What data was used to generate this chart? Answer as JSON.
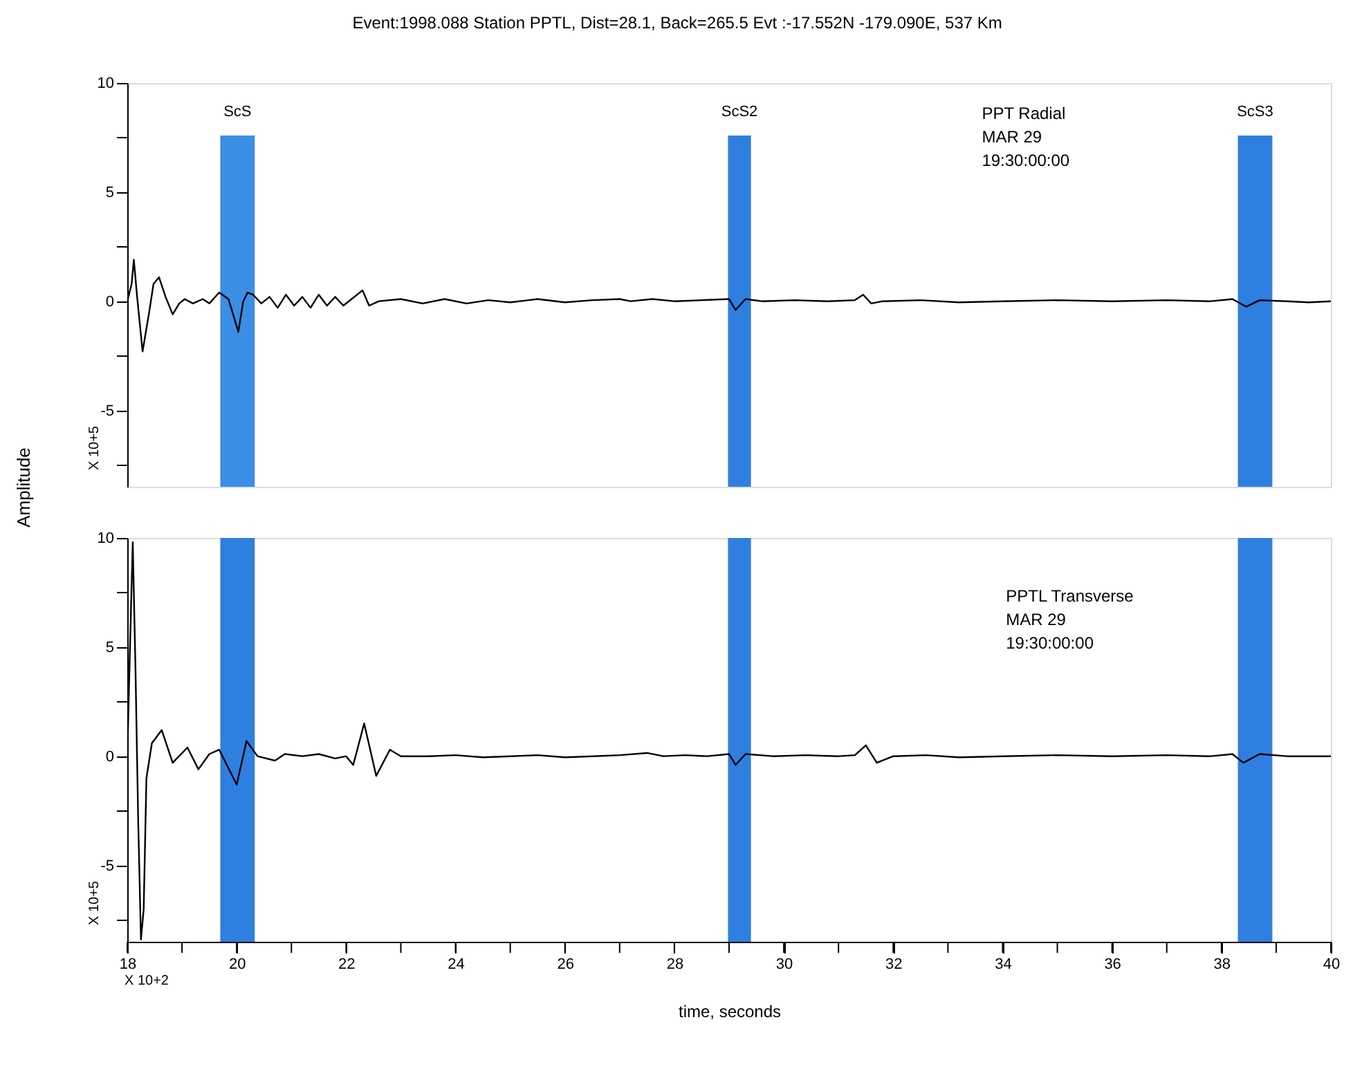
{
  "chart_data": [
    {
      "type": "line",
      "title": "Event:1998.088 Station PPTL, Dist=28.1, Back=265.5 Evt :-17.552N -179.090E, 537 Km",
      "ylabel": "Amplitude",
      "tick_labels": "y",
      "xlim": [
        18,
        40
      ],
      "ylim": [
        -8.5,
        10
      ],
      "yticks": [
        {
          "value": -7.5,
          "label": null
        },
        -5,
        {
          "value": -2.5,
          "label": null
        },
        0,
        {
          "value": 2.5,
          "label": null
        },
        5,
        {
          "value": 7.5,
          "label": null
        },
        10
      ],
      "series": [
        {
          "name": "PPT Radial",
          "color": "#000000",
          "x": [
            18.0,
            18.08,
            18.12,
            18.18,
            18.28,
            18.4,
            18.48,
            18.58,
            18.7,
            18.83,
            18.95,
            19.05,
            19.2,
            19.38,
            19.5,
            19.68,
            19.85,
            20.03,
            20.12,
            20.2,
            20.3,
            20.45,
            20.6,
            20.75,
            20.9,
            21.05,
            21.2,
            21.35,
            21.5,
            21.65,
            21.8,
            21.95,
            22.1,
            22.3,
            22.42,
            22.6,
            23.0,
            23.4,
            23.8,
            24.2,
            24.6,
            25.0,
            25.5,
            26.0,
            26.5,
            27.0,
            27.2,
            27.6,
            28.0,
            28.5,
            29.0,
            29.12,
            29.3,
            29.6,
            30.2,
            30.8,
            31.3,
            31.45,
            31.6,
            31.8,
            32.5,
            33.2,
            34.0,
            35.0,
            36.0,
            37.0,
            37.8,
            38.2,
            38.45,
            38.7,
            39.2,
            39.6,
            40.0
          ],
          "values": [
            0,
            0.8,
            1.9,
            0.2,
            -2.3,
            -0.5,
            0.8,
            1.1,
            0.2,
            -0.6,
            -0.1,
            0.1,
            -0.1,
            0.1,
            -0.1,
            0.4,
            0.1,
            -1.4,
            0,
            0.4,
            0.3,
            -0.1,
            0.2,
            -0.3,
            0.3,
            -0.2,
            0.2,
            -0.3,
            0.3,
            -0.2,
            0.2,
            -0.2,
            0.1,
            0.5,
            -0.2,
            0,
            0.1,
            -0.1,
            0.1,
            -0.1,
            0.05,
            -0.05,
            0.1,
            -0.05,
            0.05,
            0.1,
            0,
            0.1,
            0,
            0.05,
            0.1,
            -0.4,
            0.1,
            0,
            0.05,
            0,
            0.05,
            0.3,
            -0.1,
            0,
            0.05,
            -0.05,
            0,
            0.05,
            0,
            0.05,
            0,
            0.1,
            -0.25,
            0.05,
            0,
            -0.05,
            0
          ]
        }
      ],
      "bands": [
        {
          "axis": "x",
          "from": 19.7,
          "to": 20.33,
          "label": "ScS",
          "color": "#3a8ee6"
        },
        {
          "axis": "x",
          "from": 28.98,
          "to": 29.4,
          "label": "ScS2",
          "color": "#2f7fe0"
        },
        {
          "axis": "x",
          "from": 38.3,
          "to": 38.93,
          "label": "ScS3",
          "color": "#2f7fe0"
        }
      ],
      "annotations": [
        "MAR 29",
        "19:30:00:00",
        "X 10+5"
      ]
    },
    {
      "type": "line",
      "xlabel": "time, seconds",
      "xlim": [
        18,
        40
      ],
      "ylim": [
        -8.5,
        10
      ],
      "xticks": [
        18,
        {
          "value": 19,
          "label": null
        },
        20,
        {
          "value": 21,
          "label": null
        },
        22,
        {
          "value": 23,
          "label": null
        },
        24,
        {
          "value": 25,
          "label": null
        },
        26,
        {
          "value": 27,
          "label": null
        },
        28,
        {
          "value": 29,
          "label": null
        },
        30,
        {
          "value": 31,
          "label": null
        },
        32,
        {
          "value": 33,
          "label": null
        },
        34,
        {
          "value": 35,
          "label": null
        },
        36,
        {
          "value": 37,
          "label": null
        },
        38,
        {
          "value": 39,
          "label": null
        },
        40
      ],
      "yticks": [
        {
          "value": -7.5,
          "label": null
        },
        -5,
        {
          "value": -2.5,
          "label": null
        },
        0,
        {
          "value": 2.5,
          "label": null
        },
        5,
        {
          "value": 7.5,
          "label": null
        },
        10
      ],
      "series": [
        {
          "name": "PPTL Transverse",
          "color": "#000000",
          "x": [
            18.0,
            18.05,
            18.1,
            18.15,
            18.2,
            18.25,
            18.3,
            18.35,
            18.45,
            18.63,
            18.83,
            19.1,
            19.3,
            19.5,
            19.68,
            20.0,
            20.18,
            20.38,
            20.7,
            20.88,
            21.2,
            21.5,
            21.8,
            22.0,
            22.13,
            22.33,
            22.55,
            22.8,
            23.0,
            23.5,
            24.0,
            24.5,
            25.0,
            25.5,
            26.0,
            26.5,
            27.0,
            27.5,
            27.8,
            28.2,
            28.6,
            29.0,
            29.12,
            29.3,
            29.8,
            30.4,
            31.0,
            31.3,
            31.5,
            31.7,
            32.0,
            32.6,
            33.2,
            34.0,
            35.0,
            36.0,
            37.0,
            37.8,
            38.2,
            38.4,
            38.7,
            39.2,
            40.0
          ],
          "values": [
            0,
            5,
            9.8,
            4,
            -3,
            -8.4,
            -7,
            -1.0,
            0.6,
            1.2,
            -0.3,
            0.4,
            -0.6,
            0.1,
            0.3,
            -1.3,
            0.7,
            0,
            -0.2,
            0.1,
            0,
            0.1,
            -0.1,
            0,
            -0.4,
            1.5,
            -0.9,
            0.3,
            0,
            0,
            0.05,
            -0.05,
            0,
            0.05,
            -0.05,
            0,
            0.05,
            0.15,
            0,
            0.05,
            0,
            0.1,
            -0.4,
            0.1,
            0,
            0.05,
            0,
            0.05,
            0.5,
            -0.3,
            0,
            0.05,
            -0.05,
            0,
            0.05,
            0,
            0.05,
            0,
            0.1,
            -0.3,
            0.1,
            0,
            0
          ]
        }
      ],
      "bands": [
        {
          "axis": "x",
          "from": 19.7,
          "to": 20.33,
          "color": "#2f7fe0"
        },
        {
          "axis": "x",
          "from": 28.98,
          "to": 29.4,
          "color": "#2f7fe0"
        },
        {
          "axis": "x",
          "from": 38.3,
          "to": 38.93,
          "color": "#2f7fe0"
        }
      ],
      "annotations": [
        "MAR 29",
        "19:30:00:00",
        "X 10+5",
        "X 10+2"
      ]
    }
  ]
}
